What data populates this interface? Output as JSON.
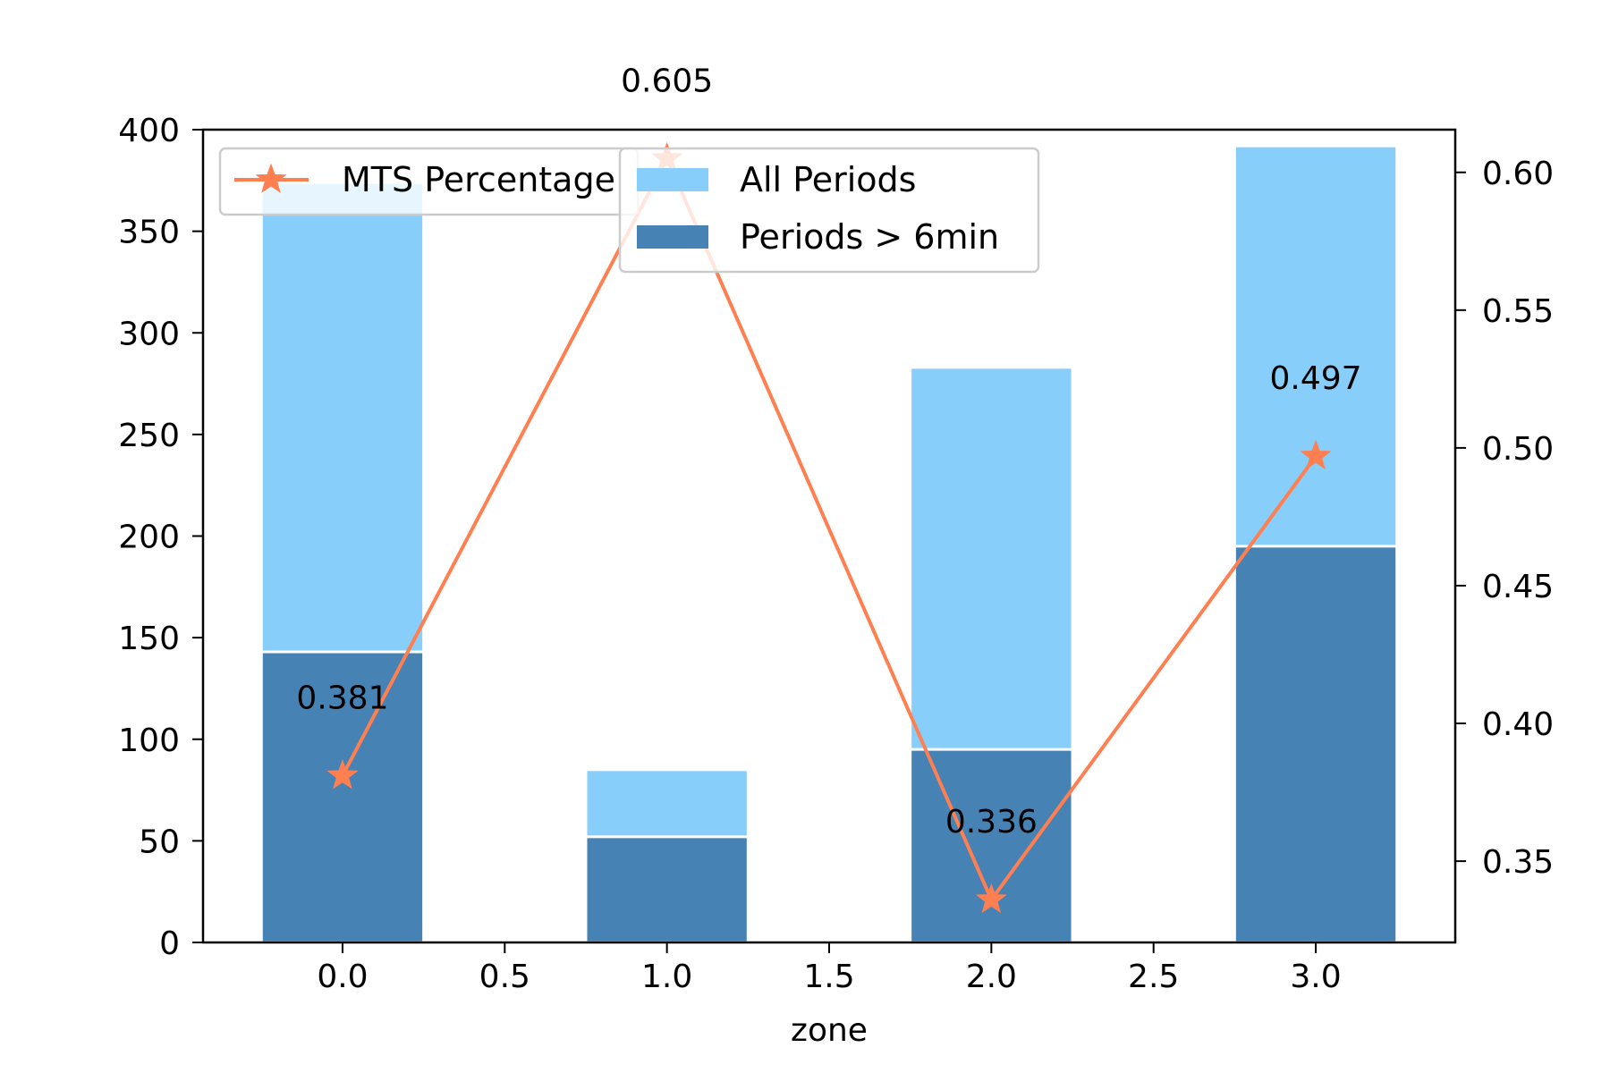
{
  "chart_data": {
    "type": "bar",
    "subtype": "overlaid bars with line on secondary axis",
    "x": [
      0.0,
      1.0,
      2.0,
      3.0
    ],
    "xlabel": "zone",
    "xlim": [
      -0.43,
      3.43
    ],
    "xticks": [
      "0.0",
      "0.5",
      "1.0",
      "1.5",
      "2.0",
      "2.5",
      "3.0"
    ],
    "xtick_values": [
      0.0,
      0.5,
      1.0,
      1.5,
      2.0,
      2.5,
      3.0
    ],
    "ylim": [
      0,
      400
    ],
    "yticks": [
      "0",
      "50",
      "100",
      "150",
      "200",
      "250",
      "300",
      "350",
      "400"
    ],
    "ytick_values": [
      0,
      50,
      100,
      150,
      200,
      250,
      300,
      350,
      400
    ],
    "y2lim": [
      0.3205,
      0.6155
    ],
    "y2ticks": [
      "0.35",
      "0.40",
      "0.45",
      "0.50",
      "0.55",
      "0.60"
    ],
    "y2tick_values": [
      0.35,
      0.4,
      0.45,
      0.5,
      0.55,
      0.6
    ],
    "bar_width": 0.5,
    "series": [
      {
        "name": "All Periods",
        "kind": "bar",
        "axis": "left",
        "color": "#87CEFA",
        "values": [
          374,
          85,
          283,
          392
        ]
      },
      {
        "name": "Periods > 6min",
        "kind": "bar",
        "axis": "left",
        "color": "#4682B4",
        "values": [
          143,
          52,
          95,
          195
        ]
      },
      {
        "name": "MTS Percentage",
        "kind": "line",
        "marker": "star",
        "axis": "right",
        "color": "#FF7F50",
        "values": [
          0.381,
          0.605,
          0.336,
          0.497
        ]
      }
    ],
    "data_labels": [
      "0.381",
      "0.605",
      "0.336",
      "0.497"
    ],
    "legends": [
      {
        "placement": "top-left",
        "entries": [
          "MTS Percentage"
        ]
      },
      {
        "placement": "upper-center",
        "entries": [
          "All Periods",
          "Periods > 6min"
        ]
      }
    ],
    "grid": false
  }
}
